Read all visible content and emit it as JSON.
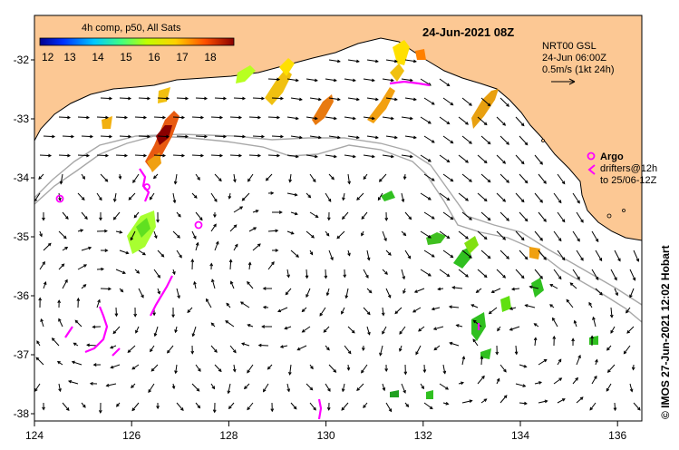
{
  "title": "24-Jun-2021 08Z",
  "colorbar": {
    "label": "4h comp, p50, All Sats",
    "ticks": [
      "12",
      "13",
      "14",
      "15",
      "16",
      "17",
      "18"
    ]
  },
  "info": {
    "line1": "NRT00 GSL",
    "line2": "24-Jun 06:00Z",
    "line3": "0.5m/s (1kt 24h)"
  },
  "legend": {
    "argo": "Argo",
    "drifters": "drifters@12h",
    "drifters2": "to 25/06-12Z"
  },
  "credit": "© IMOS 27-Jun-2021 12:02 Hobart",
  "axes": {
    "x_ticks": [
      "124",
      "126",
      "128",
      "130",
      "132",
      "134",
      "136"
    ],
    "y_ticks": [
      "-32",
      "-33",
      "-34",
      "-35",
      "-36",
      "-37",
      "-38"
    ]
  },
  "colors": {
    "land": "#fcc894",
    "ocean": "#ffffff"
  }
}
